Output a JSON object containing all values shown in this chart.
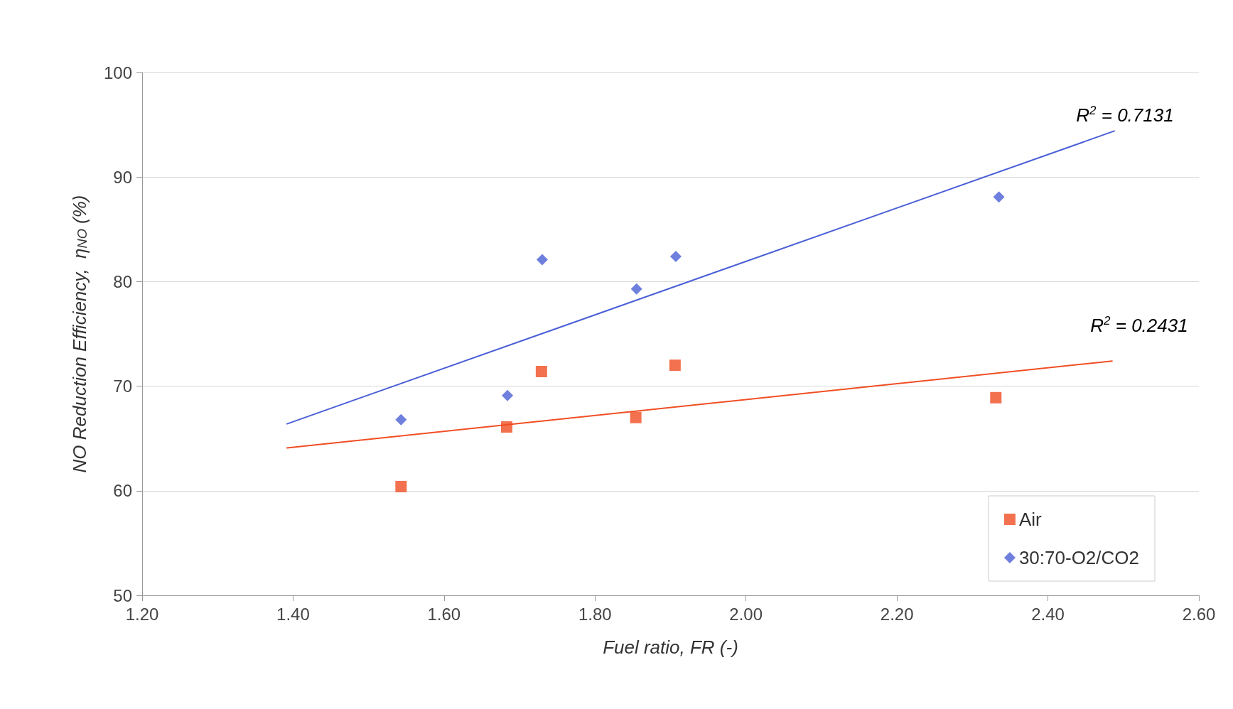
{
  "chart_data": {
    "type": "scatter",
    "xlabel": "Fuel ratio, FR (-)",
    "ylabel": "NO Reduction Efficiency,  η$_{NO}$ (%)",
    "xlim": [
      1.2,
      2.6
    ],
    "xticks": [
      {
        "value": 1.2,
        "label": "1.20"
      },
      {
        "value": 1.4,
        "label": "1.40"
      },
      {
        "value": 1.6,
        "label": "1.60"
      },
      {
        "value": 1.8,
        "label": "1.80"
      },
      {
        "value": 2.0,
        "label": "2.00"
      },
      {
        "value": 2.2,
        "label": "2.20"
      },
      {
        "value": 2.4,
        "label": "2.40"
      },
      {
        "value": 2.6,
        "label": "2.60"
      }
    ],
    "ylim": [
      50,
      100
    ],
    "yticks": [
      50,
      60,
      70,
      80,
      90,
      100
    ],
    "grid": "y",
    "legend": "bottom right",
    "series": [
      {
        "name": "Air",
        "type": "scatter",
        "marker": "square",
        "color": "#f04e23",
        "x": [
          1.543,
          1.683,
          1.729,
          1.854,
          1.906,
          2.331
        ],
        "values": [
          60.4,
          66.1,
          71.4,
          67.0,
          72.0,
          68.9
        ]
      },
      {
        "name": "30:70-O2/CO2",
        "type": "scatter",
        "marker": "diamond",
        "color": "#4a5fd6",
        "x": [
          1.543,
          1.684,
          1.73,
          1.855,
          1.907,
          2.335
        ],
        "values": [
          66.8,
          69.1,
          82.1,
          79.3,
          82.4,
          88.1
        ]
      },
      {
        "type": "line",
        "marker": "none",
        "color": "#f04e23",
        "x": [
          1.392,
          2.485
        ],
        "values": [
          64.1,
          72.4
        ]
      },
      {
        "type": "line",
        "marker": "none",
        "color": "#4a5fd6",
        "x": [
          1.392,
          2.488
        ],
        "values": [
          66.4,
          94.4
        ]
      }
    ],
    "annotations": [
      "R$^{2}$ = 0.7131",
      "R$^{2}$ = 0.2431"
    ]
  }
}
